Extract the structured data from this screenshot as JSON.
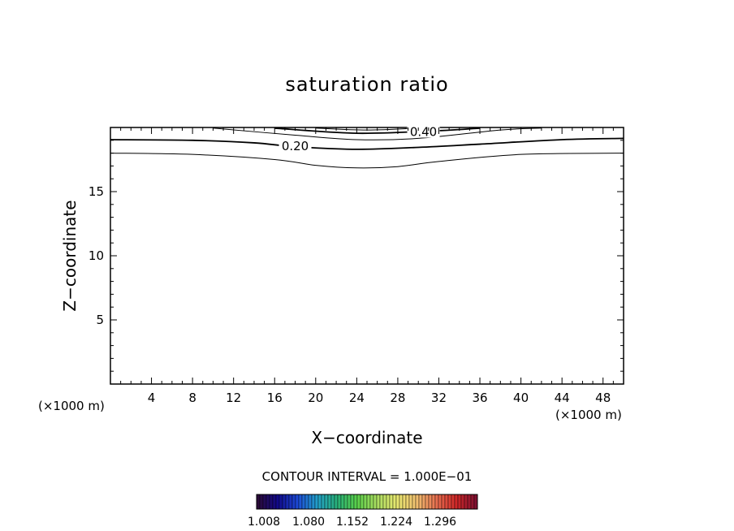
{
  "chart_data": {
    "type": "contour",
    "title": "saturation ratio",
    "xlabel": "X−coordinate",
    "ylabel": "Z−coordinate",
    "x_unit": "(×1000 m)",
    "y_unit": "(×1000 m)",
    "xlim": [
      0,
      50
    ],
    "ylim": [
      0,
      20
    ],
    "x_ticks": [
      4,
      8,
      12,
      16,
      20,
      24,
      28,
      32,
      36,
      40,
      44,
      48
    ],
    "y_ticks": [
      5,
      10,
      15
    ],
    "contour_interval_text": "CONTOUR INTERVAL = 1.000E−01",
    "contours": [
      {
        "level": 0.1,
        "label": "",
        "points": [
          [
            0,
            18.0
          ],
          [
            8,
            17.9
          ],
          [
            16,
            17.5
          ],
          [
            20,
            17.05
          ],
          [
            24,
            16.85
          ],
          [
            28,
            16.95
          ],
          [
            32,
            17.35
          ],
          [
            40,
            17.9
          ],
          [
            50,
            18.0
          ]
        ]
      },
      {
        "level": 0.2,
        "label": "0.20",
        "points": [
          [
            0,
            19.05
          ],
          [
            8,
            19.0
          ],
          [
            14,
            18.8
          ],
          [
            18,
            18.5
          ],
          [
            24,
            18.3
          ],
          [
            30,
            18.45
          ],
          [
            36,
            18.7
          ],
          [
            44,
            19.05
          ],
          [
            50,
            19.15
          ]
        ]
      },
      {
        "level": 0.3,
        "label": "",
        "points": [
          [
            10,
            19.95
          ],
          [
            18,
            19.4
          ],
          [
            24,
            19.05
          ],
          [
            30,
            19.15
          ],
          [
            38,
            19.8
          ],
          [
            42,
            19.95
          ]
        ]
      },
      {
        "level": 0.4,
        "label": "0.40",
        "points": [
          [
            16,
            19.95
          ],
          [
            24,
            19.55
          ],
          [
            32,
            19.75
          ],
          [
            36,
            19.95
          ]
        ]
      },
      {
        "level": 0.5,
        "label": "",
        "points": [
          [
            20,
            19.95
          ],
          [
            25,
            19.8
          ],
          [
            30,
            19.95
          ]
        ]
      }
    ],
    "colorbar": {
      "labels": [
        "1.008",
        "1.080",
        "1.152",
        "1.224",
        "1.296"
      ],
      "colors": [
        "#2a0a3a",
        "#120a8c",
        "#1c4ad6",
        "#22a0c8",
        "#28b078",
        "#5ad04a",
        "#a8dc60",
        "#e8e870",
        "#f0c070",
        "#e87050",
        "#d02828",
        "#801030"
      ]
    },
    "grid": false
  }
}
